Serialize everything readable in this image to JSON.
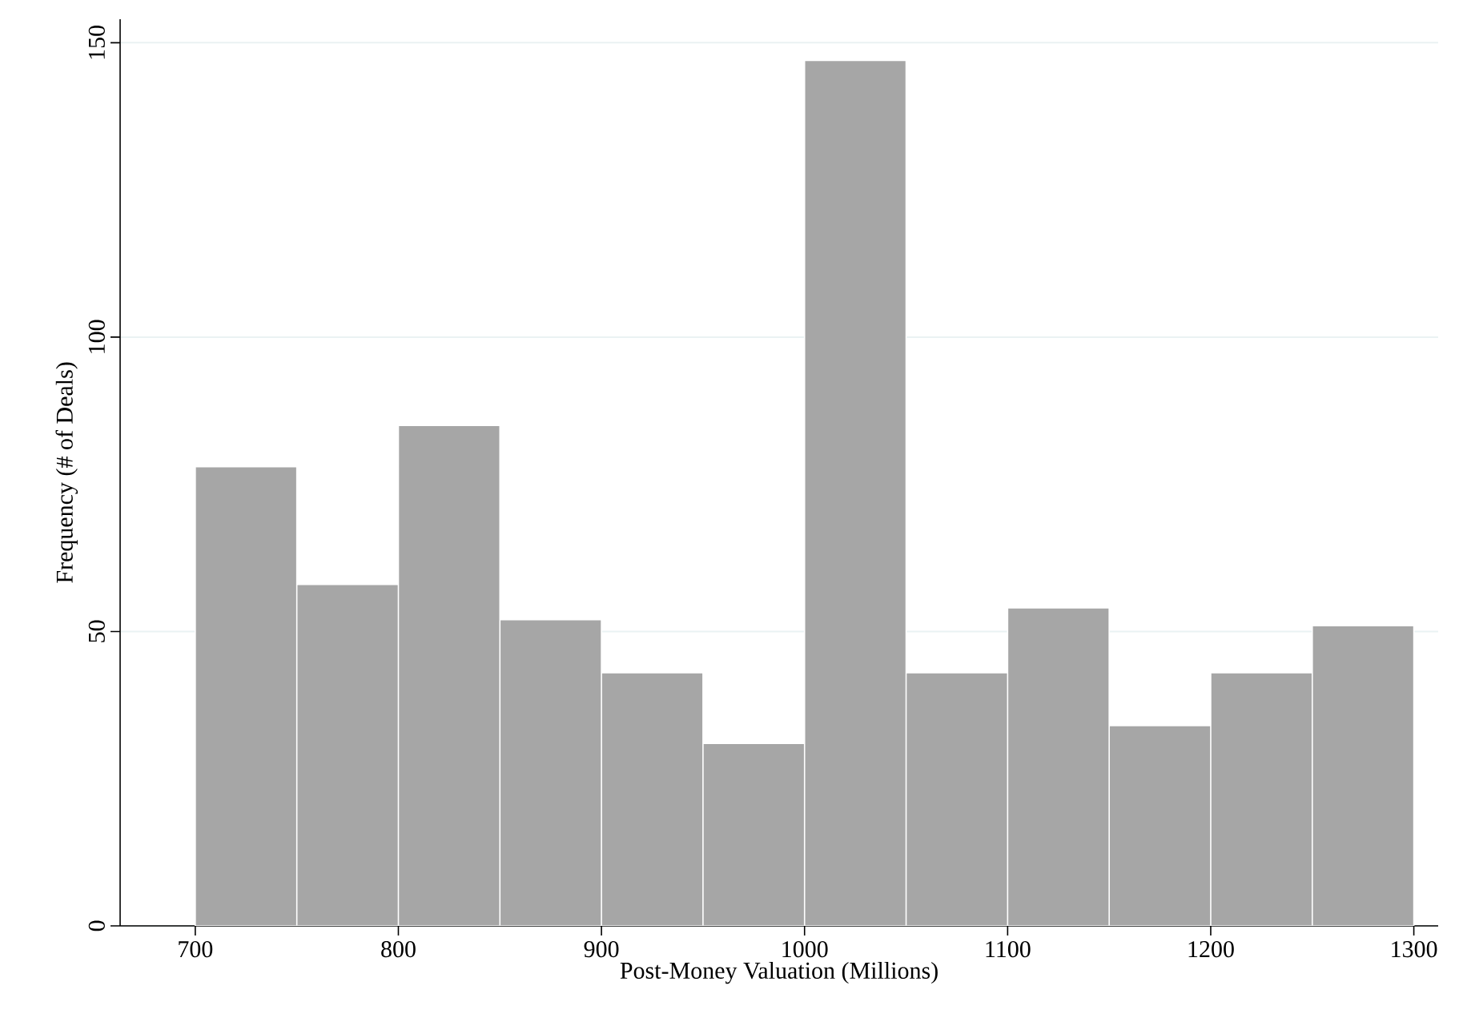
{
  "chart_data": {
    "type": "histogram",
    "xlabel": "Post-Money Valuation (Millions)",
    "ylabel": "Frequency (# of Deals)",
    "bins": [
      700,
      750,
      800,
      850,
      900,
      950,
      1000,
      1050,
      1100,
      1150,
      1200,
      1250,
      1300
    ],
    "values": [
      78,
      58,
      85,
      52,
      43,
      31,
      147,
      43,
      54,
      34,
      43,
      51
    ],
    "color": "#a6a6a6",
    "xlim": [
      663,
      1312
    ],
    "ylim": [
      0,
      154
    ],
    "xticks": [
      700,
      800,
      900,
      1000,
      1100,
      1200,
      1300
    ],
    "yticks": [
      0,
      50,
      100,
      150
    ],
    "grid": "y"
  }
}
